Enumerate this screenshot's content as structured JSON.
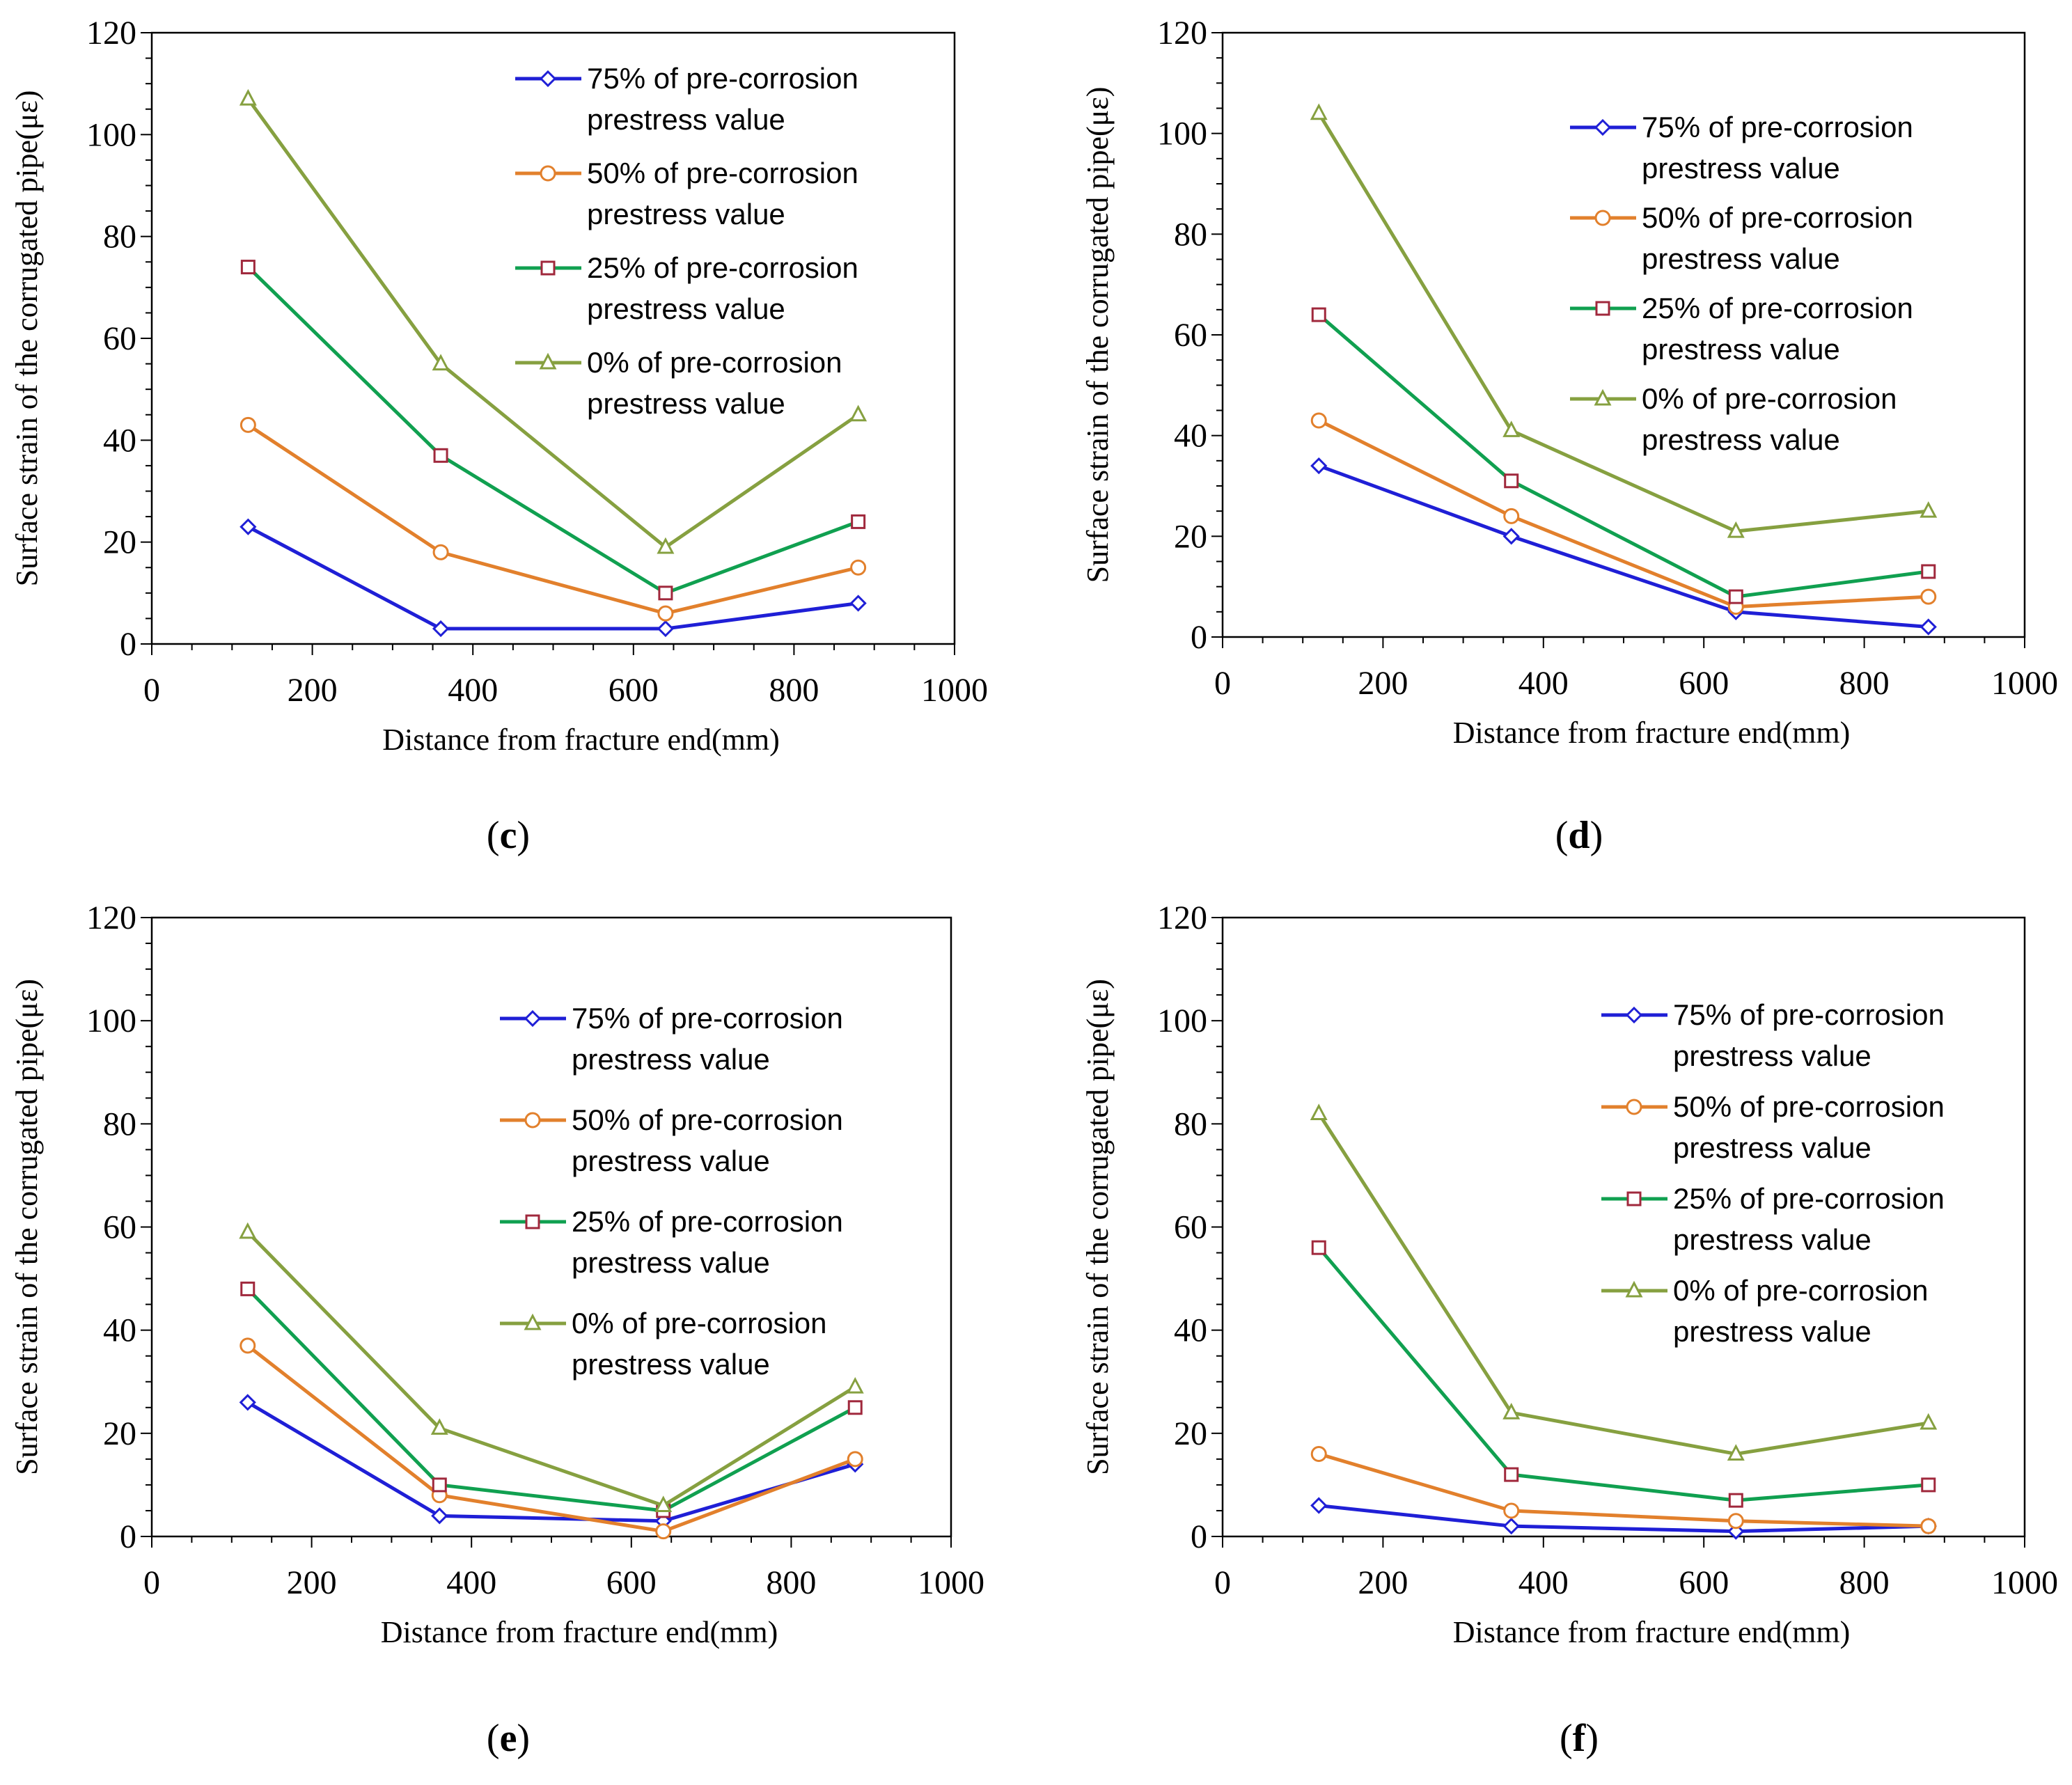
{
  "shared": {
    "xlabel": "Distance from fracture end(mm)",
    "ylabel": "Surface strain of the corrugated pipe(με)",
    "x_ticks": [
      0,
      200,
      400,
      600,
      800,
      1000
    ],
    "y_ticks": [
      0,
      20,
      40,
      60,
      80,
      100,
      120
    ],
    "xlim": [
      0,
      1000
    ],
    "ylim": [
      0,
      120
    ]
  },
  "series_styles": [
    {
      "name_line1": "75% of pre-corrosion",
      "name_line2": "prestress value",
      "color": "#1f1fd6",
      "marker": "diamond"
    },
    {
      "name_line1": "50% of pre-corrosion",
      "name_line2": "prestress value",
      "color": "#e2802c",
      "marker": "circle"
    },
    {
      "name_line1": "25% of pre-corrosion",
      "name_line2": "prestress value",
      "color": "#10a050",
      "marker": "square",
      "marker_color": "#a0283c"
    },
    {
      "name_line1": "0% of pre-corrosion",
      "name_line2": "prestress value",
      "color": "#86a040",
      "marker": "triangle"
    }
  ],
  "chart_data": [
    {
      "type": "line",
      "panel_label": "c",
      "legend_position": "top-right",
      "x": [
        120,
        360,
        640,
        880
      ],
      "series": [
        {
          "name": "75% of pre-corrosion prestress value",
          "values": [
            23,
            3,
            3,
            8
          ]
        },
        {
          "name": "50% of pre-corrosion prestress value",
          "values": [
            43,
            18,
            6,
            15
          ]
        },
        {
          "name": "25% of pre-corrosion prestress value",
          "values": [
            74,
            37,
            10,
            24
          ]
        },
        {
          "name": "0% of pre-corrosion prestress value",
          "values": [
            107,
            55,
            19,
            45
          ]
        }
      ],
      "xlabel": "Distance from fracture end(mm)",
      "ylabel": "Surface strain of the corrugated pipe(με)",
      "xlim": [
        0,
        1000
      ],
      "ylim": [
        0,
        120
      ]
    },
    {
      "type": "line",
      "panel_label": "d",
      "legend_position": "top-right",
      "x": [
        120,
        360,
        640,
        880
      ],
      "series": [
        {
          "name": "75% of pre-corrosion prestress value",
          "values": [
            34,
            20,
            5,
            2
          ]
        },
        {
          "name": "50% of pre-corrosion prestress value",
          "values": [
            43,
            24,
            6,
            8
          ]
        },
        {
          "name": "25% of pre-corrosion prestress value",
          "values": [
            64,
            31,
            8,
            13
          ]
        },
        {
          "name": "0% of pre-corrosion prestress value",
          "values": [
            104,
            41,
            21,
            25
          ]
        }
      ],
      "xlabel": "Distance from fracture end(mm)",
      "ylabel": "Surface strain of the corrugated pipe(με)",
      "xlim": [
        0,
        1000
      ],
      "ylim": [
        0,
        120
      ]
    },
    {
      "type": "line",
      "panel_label": "e",
      "legend_position": "right",
      "x": [
        120,
        360,
        640,
        880
      ],
      "series": [
        {
          "name": "75% of pre-corrosion prestress value",
          "values": [
            26,
            4,
            3,
            14
          ]
        },
        {
          "name": "50% of pre-corrosion prestress value",
          "values": [
            37,
            8,
            1,
            15
          ]
        },
        {
          "name": "25% of pre-corrosion prestress value",
          "values": [
            48,
            10,
            5,
            25
          ]
        },
        {
          "name": "0% of pre-corrosion prestress value",
          "values": [
            59,
            21,
            6,
            29
          ]
        }
      ],
      "xlabel": "Distance from fracture end(mm)",
      "ylabel": "Surface strain of the corrugated pipe(με)",
      "xlim": [
        0,
        1000
      ],
      "ylim": [
        0,
        120
      ]
    },
    {
      "type": "line",
      "panel_label": "f",
      "legend_position": "top-right",
      "x": [
        120,
        360,
        640,
        880
      ],
      "series": [
        {
          "name": "75% of pre-corrosion prestress value",
          "values": [
            6,
            2,
            1,
            2
          ]
        },
        {
          "name": "50% of pre-corrosion prestress value",
          "values": [
            16,
            5,
            3,
            2
          ]
        },
        {
          "name": "25% of pre-corrosion prestress value",
          "values": [
            56,
            12,
            7,
            10
          ]
        },
        {
          "name": "0% of pre-corrosion prestress value",
          "values": [
            82,
            24,
            16,
            22
          ]
        }
      ],
      "xlabel": "Distance from fracture end(mm)",
      "ylabel": "Surface strain of the corrugated pipe(με)",
      "xlim": [
        0,
        1000
      ],
      "ylim": [
        0,
        120
      ]
    }
  ]
}
